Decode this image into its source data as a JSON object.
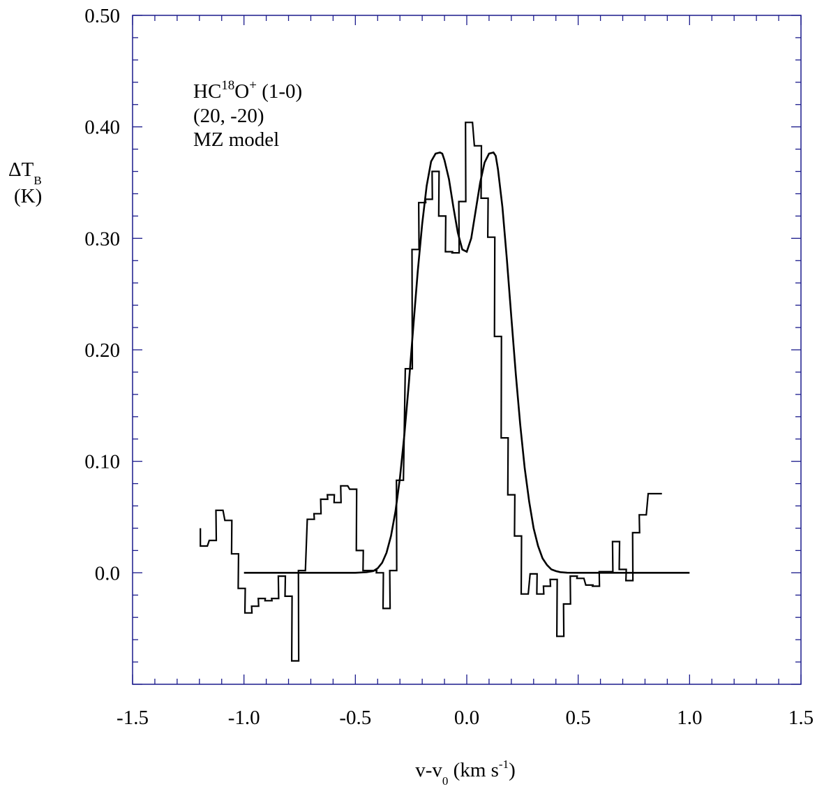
{
  "chart_data": {
    "type": "line",
    "xlabel": {
      "main": "v-v",
      "sub": "0",
      "unit_pre": " (km s",
      "sup": "-1",
      "unit_post": ")"
    },
    "ylabel": {
      "line1_main": "ΔT",
      "line1_sub": "B",
      "line2": "(K)"
    },
    "xlim": [
      -1.5,
      1.5
    ],
    "ylim": [
      -0.1,
      0.5
    ],
    "x_ticks": [
      "-1.5",
      "-1.0",
      "-0.5",
      "0.0",
      "0.5",
      "1.0",
      "1.5"
    ],
    "y_ticks": [
      "0.0",
      "0.10",
      "0.20",
      "0.30",
      "0.40",
      "0.50"
    ],
    "annotation": {
      "line1_a": "HC",
      "line1_sup1": "18",
      "line1_b": "O",
      "line1_sup2": "+",
      "line1_c": " (1-0)",
      "line2": "(20, -20)",
      "line3": "MZ model"
    },
    "series": [
      {
        "kind": "step-observed",
        "x": [
          -1.18,
          -1.14,
          -1.11,
          -1.07,
          -1.04,
          -1.01,
          -0.98,
          -0.95,
          -0.92,
          -0.89,
          -0.86,
          -0.83,
          -0.8,
          -0.77,
          -0.74,
          -0.7,
          -0.67,
          -0.64,
          -0.61,
          -0.58,
          -0.55,
          -0.51,
          -0.48,
          -0.45,
          -0.42,
          -0.39,
          -0.36,
          -0.33,
          -0.3,
          -0.26,
          -0.23,
          -0.2,
          -0.17,
          -0.14,
          -0.11,
          -0.08,
          -0.05,
          -0.02,
          0.01,
          0.05,
          0.08,
          0.11,
          0.14,
          0.17,
          0.2,
          0.23,
          0.26,
          0.3,
          0.33,
          0.36,
          0.39,
          0.42,
          0.45,
          0.48,
          0.51,
          0.55,
          0.58,
          0.61,
          0.64,
          0.67,
          0.7,
          0.73,
          0.76,
          0.79,
          0.83,
          0.86
        ],
        "y": [
          0.024,
          0.029,
          0.056,
          0.047,
          0.017,
          -0.014,
          -0.036,
          -0.03,
          -0.023,
          -0.025,
          -0.023,
          -0.003,
          -0.021,
          -0.079,
          0.002,
          0.048,
          0.053,
          0.066,
          0.07,
          0.063,
          0.078,
          0.075,
          0.02,
          0.002,
          0.002,
          0.0,
          -0.032,
          0.002,
          0.083,
          0.183,
          0.29,
          0.332,
          0.335,
          0.36,
          0.32,
          0.288,
          0.287,
          0.333,
          0.404,
          0.383,
          0.336,
          0.301,
          0.212,
          0.121,
          0.07,
          0.033,
          -0.019,
          -0.001,
          -0.019,
          -0.012,
          -0.006,
          -0.057,
          -0.028,
          -0.003,
          -0.005,
          -0.011,
          -0.012,
          0.001,
          0.001,
          0.028,
          0.003,
          -0.007,
          0.036,
          0.052,
          0.071,
          0.071
        ]
      },
      {
        "kind": "model",
        "x": [
          -1.0,
          -0.9,
          -0.8,
          -0.7,
          -0.6,
          -0.5,
          -0.45,
          -0.42,
          -0.4,
          -0.38,
          -0.36,
          -0.34,
          -0.32,
          -0.3,
          -0.28,
          -0.26,
          -0.24,
          -0.22,
          -0.2,
          -0.18,
          -0.16,
          -0.14,
          -0.12,
          -0.11,
          -0.1,
          -0.08,
          -0.06,
          -0.04,
          -0.02,
          0.0,
          0.02,
          0.04,
          0.06,
          0.08,
          0.1,
          0.12,
          0.13,
          0.14,
          0.16,
          0.18,
          0.2,
          0.22,
          0.24,
          0.26,
          0.28,
          0.3,
          0.32,
          0.34,
          0.36,
          0.38,
          0.4,
          0.42,
          0.45,
          0.5,
          0.6,
          0.7,
          0.8,
          0.9,
          1.0
        ],
        "y": [
          0,
          0,
          0,
          0,
          0,
          0,
          0.0005,
          0.0015,
          0.004,
          0.009,
          0.018,
          0.033,
          0.055,
          0.085,
          0.124,
          0.17,
          0.221,
          0.27,
          0.313,
          0.347,
          0.369,
          0.376,
          0.377,
          0.376,
          0.37,
          0.353,
          0.328,
          0.305,
          0.29,
          0.288,
          0.3,
          0.325,
          0.35,
          0.368,
          0.376,
          0.377,
          0.374,
          0.362,
          0.328,
          0.281,
          0.229,
          0.178,
          0.133,
          0.094,
          0.064,
          0.04,
          0.024,
          0.013,
          0.007,
          0.003,
          0.0015,
          0.0006,
          0.0001,
          0,
          0,
          0,
          0,
          0,
          0
        ]
      }
    ]
  }
}
